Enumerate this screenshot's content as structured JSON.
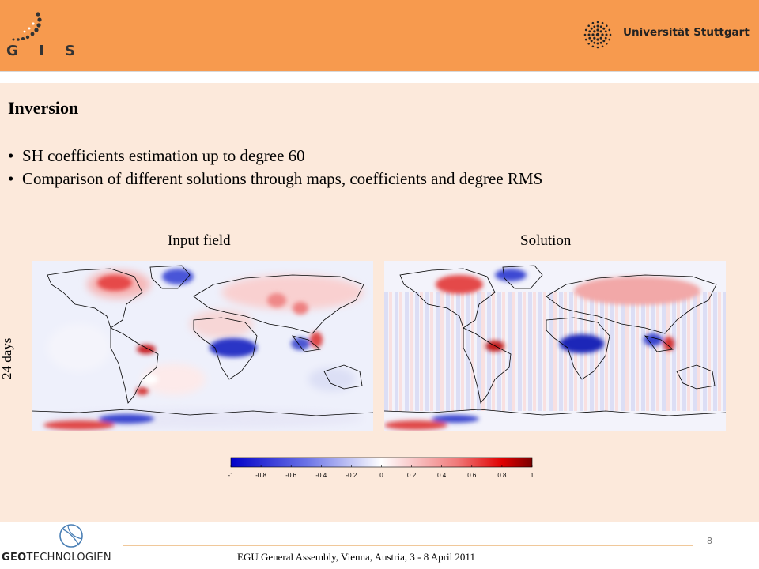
{
  "header": {
    "left_logo_text": "G I S",
    "university_name": "Universität Stuttgart",
    "accent_color": "#f79a4e"
  },
  "slide": {
    "title": "Inversion",
    "bullets": [
      "SH coefficients estimation up to degree 60",
      "Comparison of different solutions through maps, coefficients and degree RMS"
    ],
    "maps": {
      "left_label": "Input field",
      "right_label": "Solution",
      "row_label": "24 days"
    },
    "colorbar": {
      "ticks": [
        "-1",
        "-0.8",
        "-0.6",
        "-0.4",
        "-0.2",
        "0",
        "0.2",
        "0.4",
        "0.6",
        "0.8",
        "1"
      ],
      "colors": [
        "#0000c8",
        "#ffffff",
        "#c80000"
      ]
    }
  },
  "footer": {
    "logo_text_bold": "GEO",
    "logo_text_rest": "TECHNOLOGIEN",
    "conference": "EGU General Assembly, Vienna, Austria, 3 - 8 April 2011",
    "page_number": "8"
  }
}
